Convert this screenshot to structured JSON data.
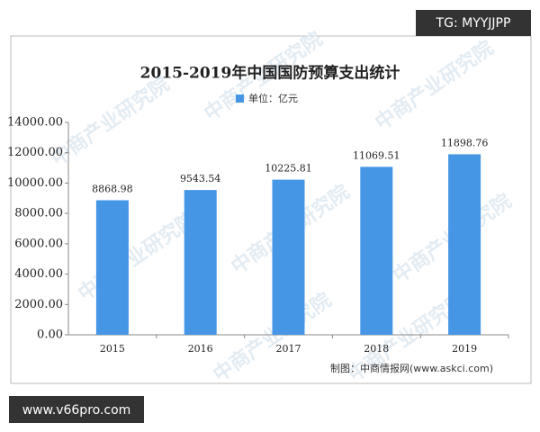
{
  "chart_data": {
    "type": "bar",
    "title": "2015-2019年中国国防预算支出统计",
    "categories": [
      "2015",
      "2016",
      "2017",
      "2018",
      "2019"
    ],
    "series": [
      {
        "name": "单位：亿元",
        "color": "#4596e4",
        "values": [
          8868.98,
          9543.54,
          10225.81,
          11069.51,
          11898.76
        ]
      }
    ],
    "ylim": [
      0,
      14000
    ],
    "yticks": [
      {
        "value": 0,
        "label": "0.00"
      },
      {
        "value": 2000,
        "label": "2000.00"
      },
      {
        "value": 4000,
        "label": "4000.00"
      },
      {
        "value": 6000,
        "label": "6000.00"
      },
      {
        "value": 8000,
        "label": "8000.00"
      },
      {
        "value": 10000,
        "label": "10000.00"
      },
      {
        "value": 12000,
        "label": "12000.00"
      },
      {
        "value": 14000,
        "label": "14000.00"
      }
    ],
    "grid": false,
    "source": "制图：中商情报网(www.askci.com)"
  },
  "watermark": "中商产业研究院",
  "overlay_top": "TG: MYYJJPP",
  "overlay_bottom": "www.v66pro.com"
}
